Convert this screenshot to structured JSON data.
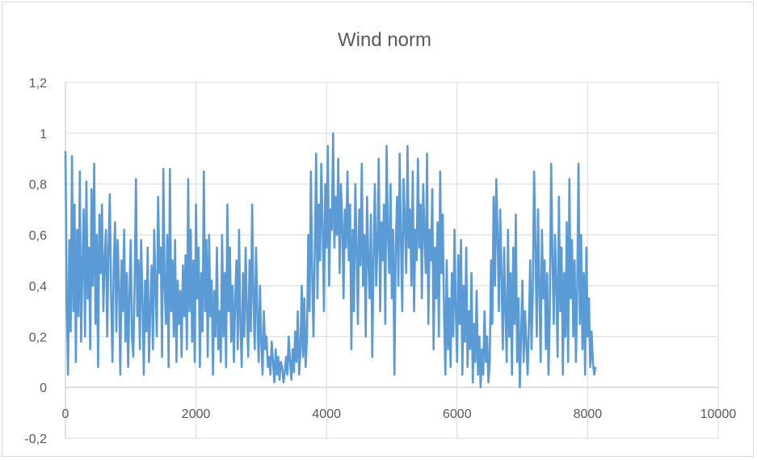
{
  "chart_data": {
    "type": "line",
    "title": "Wind norm",
    "xlabel": "",
    "ylabel": "",
    "xlim": [
      0,
      10000
    ],
    "ylim": [
      -0.2,
      1.2
    ],
    "x_ticks": [
      "0",
      "2000",
      "4000",
      "6000",
      "8000",
      "10000"
    ],
    "y_ticks": [
      "-0,2",
      "0",
      "0,2",
      "0,4",
      "0,6",
      "0,8",
      "1",
      "1,2"
    ],
    "grid": true,
    "legend": "none",
    "series_color": "#5b9bd5",
    "series": [
      {
        "x_start": 0,
        "x_step": 20,
        "values": [
          0.93,
          0.35,
          0.05,
          0.58,
          0.22,
          0.91,
          0.3,
          0.72,
          0.1,
          0.62,
          0.28,
          0.85,
          0.18,
          0.47,
          0.7,
          0.2,
          0.81,
          0.35,
          0.55,
          0.15,
          0.78,
          0.4,
          0.88,
          0.25,
          0.6,
          0.08,
          0.68,
          0.45,
          0.72,
          0.3,
          0.5,
          0.62,
          0.2,
          0.55,
          0.76,
          0.35,
          0.1,
          0.48,
          0.65,
          0.22,
          0.58,
          0.4,
          0.05,
          0.5,
          0.3,
          0.62,
          0.18,
          0.45,
          0.08,
          0.36,
          0.58,
          0.2,
          0.12,
          0.4,
          0.82,
          0.28,
          0.5,
          0.15,
          0.58,
          0.35,
          0.05,
          0.42,
          0.22,
          0.55,
          0.1,
          0.3,
          0.48,
          0.15,
          0.62,
          0.38,
          0.2,
          0.75,
          0.45,
          0.55,
          0.12,
          0.86,
          0.4,
          0.25,
          0.6,
          0.08,
          0.86,
          0.3,
          0.5,
          0.2,
          0.58,
          0.1,
          0.42,
          0.25,
          0.38,
          0.12,
          0.48,
          0.28,
          0.52,
          0.15,
          0.82,
          0.3,
          0.62,
          0.18,
          0.5,
          0.1,
          0.72,
          0.35,
          0.55,
          0.08,
          0.45,
          0.22,
          0.85,
          0.3,
          0.58,
          0.12,
          0.6,
          0.28,
          0.42,
          0.05,
          0.38,
          0.2,
          0.55,
          0.15,
          0.3,
          0.1,
          0.6,
          0.2,
          0.45,
          0.08,
          0.72,
          0.3,
          0.55,
          0.18,
          0.4,
          0.1,
          0.35,
          0.5,
          0.15,
          0.62,
          0.25,
          0.08,
          0.45,
          0.2,
          0.55,
          0.3,
          0.12,
          0.5,
          0.22,
          0.72,
          0.35,
          0.15,
          0.55,
          0.28,
          0.1,
          0.4,
          0.18,
          0.05,
          0.3,
          0.15,
          0.2,
          0.08,
          0.12,
          0.05,
          0.18,
          0.1,
          0.02,
          0.15,
          0.05,
          0.12,
          0.03,
          0.1,
          0.08,
          0.02,
          0.06,
          0.12,
          0.05,
          0.2,
          0.1,
          0.03,
          0.15,
          0.06,
          0.22,
          0.1,
          0.3,
          0.05,
          0.15,
          0.4,
          0.12,
          0.35,
          0.08,
          0.2,
          0.6,
          0.3,
          0.85,
          0.45,
          0.2,
          0.55,
          0.92,
          0.35,
          0.72,
          0.5,
          0.88,
          0.62,
          0.3,
          0.8,
          0.55,
          0.95,
          0.4,
          0.7,
          0.62,
          1.0,
          0.55,
          0.75,
          0.6,
          0.9,
          0.45,
          0.8,
          0.65,
          0.35,
          0.7,
          0.55,
          0.85,
          0.5,
          0.72,
          0.15,
          0.62,
          0.3,
          0.8,
          0.55,
          0.25,
          0.7,
          0.48,
          0.88,
          0.4,
          0.6,
          0.2,
          0.75,
          0.5,
          0.35,
          0.68,
          0.12,
          0.52,
          0.8,
          0.4,
          0.55,
          0.9,
          0.3,
          0.65,
          0.5,
          0.72,
          0.25,
          0.95,
          0.6,
          0.45,
          0.8,
          0.35,
          0.62,
          0.05,
          0.55,
          0.75,
          0.4,
          0.92,
          0.58,
          0.3,
          0.82,
          0.65,
          0.45,
          0.95,
          0.55,
          0.7,
          0.4,
          0.85,
          0.3,
          0.62,
          0.5,
          0.9,
          0.55,
          0.72,
          0.35,
          0.8,
          0.6,
          0.45,
          0.92,
          0.25,
          0.62,
          0.5,
          0.78,
          0.15,
          0.55,
          0.35,
          0.65,
          0.2,
          0.85,
          0.45,
          0.68,
          0.3,
          0.05,
          0.5,
          0.15,
          0.35,
          0.08,
          0.45,
          0.2,
          0.62,
          0.3,
          0.1,
          0.52,
          0.25,
          0.58,
          0.05,
          0.4,
          0.18,
          0.55,
          0.08,
          0.3,
          0.15,
          0.45,
          0.02,
          0.25,
          0.1,
          0.38,
          0.05,
          0.2,
          0.0,
          0.15,
          0.05,
          0.3,
          0.1,
          0.2,
          0.02,
          0.1,
          0.5,
          0.25,
          0.75,
          0.4,
          0.82,
          0.6,
          0.3,
          0.7,
          0.45,
          0.15,
          0.55,
          0.3,
          0.1,
          0.62,
          0.2,
          0.45,
          0.05,
          0.55,
          0.25,
          0.68,
          0.1,
          0.35,
          0.0,
          0.2,
          0.42,
          0.1,
          0.3,
          0.18,
          0.05,
          0.25,
          0.5,
          0.15,
          0.38,
          0.85,
          0.55,
          0.2,
          0.7,
          0.4,
          0.1,
          0.62,
          0.35,
          0.5,
          0.15,
          0.45,
          0.05,
          0.3,
          0.88,
          0.52,
          0.25,
          0.6,
          0.4,
          0.12,
          0.75,
          0.3,
          0.55,
          0.05,
          0.45,
          0.2,
          0.65,
          0.1,
          0.82,
          0.35,
          0.58,
          0.2,
          0.5,
          0.1,
          0.4,
          0.88,
          0.25,
          0.6,
          0.15,
          0.45,
          0.05,
          0.55,
          0.2,
          0.35,
          0.08,
          0.22,
          0.1,
          0.05,
          0.08
        ]
      }
    ]
  }
}
